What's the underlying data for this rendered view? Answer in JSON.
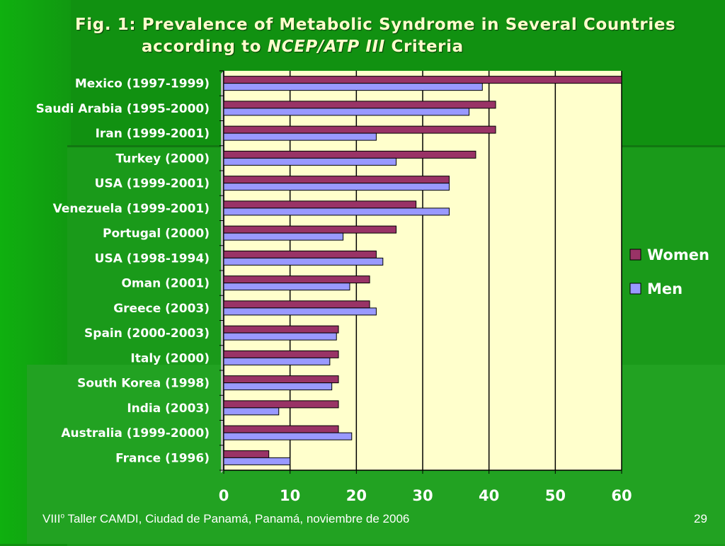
{
  "slide": {
    "title_line1": "Fig. 1: Prevalence of Metabolic Syndrome in Several Countries",
    "title_line2_prefix": "according to ",
    "title_line2_italic": "NCEP/ATP III",
    "title_line2_suffix": " Criteria",
    "footer_prefix": "VIII",
    "footer_sup": "o",
    "footer_rest": " Taller CAMDI, Ciudad de Panamá, Panamá, noviembre de 2006",
    "page_number": "29"
  },
  "chart_data": {
    "type": "bar",
    "orientation": "horizontal",
    "categories": [
      "Mexico (1997-1999)",
      "Saudi Arabia (1995-2000)",
      "Iran (1999-2001)",
      "Turkey (2000)",
      "USA (1999-2001)",
      "Venezuela (1999-2001)",
      "Portugal (2000)",
      "USA (1998-1994)",
      "Oman (2001)",
      "Greece (2003)",
      "Spain (2000-2003)",
      "Italy (2000)",
      "South Korea (1998)",
      "India (2003)",
      "Australia (1999-2000)",
      "France (1996)"
    ],
    "series": [
      {
        "name": "Women",
        "color": "#993366",
        "values": [
          60,
          41,
          41,
          38,
          34,
          29,
          26,
          23,
          22,
          22,
          17.3,
          17.3,
          17.3,
          17.3,
          17.3,
          6.8
        ]
      },
      {
        "name": "Men",
        "color": "#9999ff",
        "values": [
          39,
          37,
          23,
          26,
          34,
          34,
          18,
          24,
          19,
          23,
          17,
          16,
          16.3,
          8.3,
          19.3,
          10
        ]
      }
    ],
    "xlim": [
      0,
      60
    ],
    "xticks": [
      0,
      10,
      20,
      30,
      40,
      50,
      60
    ],
    "grid": true,
    "legend": "right",
    "plot_background": "#ffffcc"
  }
}
